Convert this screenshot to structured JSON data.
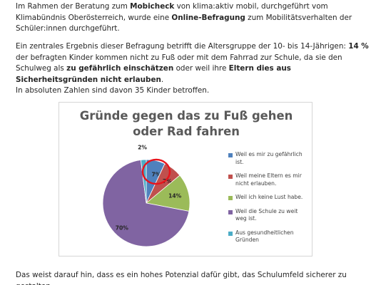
{
  "paragraph1": {
    "t1": "Im Rahmen der Beratung zum ",
    "b1": "Mobicheck",
    "t2": " von klima:aktiv mobil, durchgeführt vom Klimabündnis Oberösterreich, wurde eine ",
    "b2": "Online-Befragung",
    "t3": " zum Mobilitätsverhalten der Schüler:innen durchgeführt."
  },
  "paragraph2": {
    "t1": "Ein zentrales Ergebnis dieser Befragung betrifft die Altersgruppe der 10- bis 14-Jährigen: ",
    "b1": "14 %",
    "t2": " der befragten Kinder kommen nicht zu Fuß oder mit dem Fahrrad zur Schule, da sie den Schulweg als ",
    "b2": "zu gefährlich einschätzen",
    "t3": " oder weil ihre ",
    "b3": "Eltern dies aus Sicherheitsgründen nicht erlauben",
    "t4": ".",
    "line2": "In absoluten Zahlen sind davon 35 Kinder betroffen."
  },
  "paragraph3": {
    "text": "Das weist darauf hin, dass es ein hohes Potenzial dafür gibt, das Schulumfeld sicherer zu gestalten."
  },
  "chart_data": {
    "type": "pie",
    "title_line1": "Gründe gegen das zu Fuß gehen",
    "title_line2": "oder Rad fahren",
    "slices": [
      {
        "label": "Weil es mir zu gefährlich ist.",
        "value": 7,
        "display": "7%",
        "color": "#4f81bd"
      },
      {
        "label": "Weil meine Eltern es mir nicht erlauben.",
        "value": 7,
        "display": "7%",
        "color": "#c0504d"
      },
      {
        "label": "Weil ich keine Lust habe.",
        "value": 14,
        "display": "14%",
        "color": "#9bbb59"
      },
      {
        "label": "Weil die Schule zu weit weg ist.",
        "value": 70,
        "display": "70%",
        "color": "#8064a2"
      },
      {
        "label": "Aus gesundheitlichen Gründen",
        "value": 2,
        "display": "2%",
        "color": "#4bacc6"
      }
    ],
    "legend_position": "right",
    "highlight": {
      "color": "#e8141c"
    }
  }
}
